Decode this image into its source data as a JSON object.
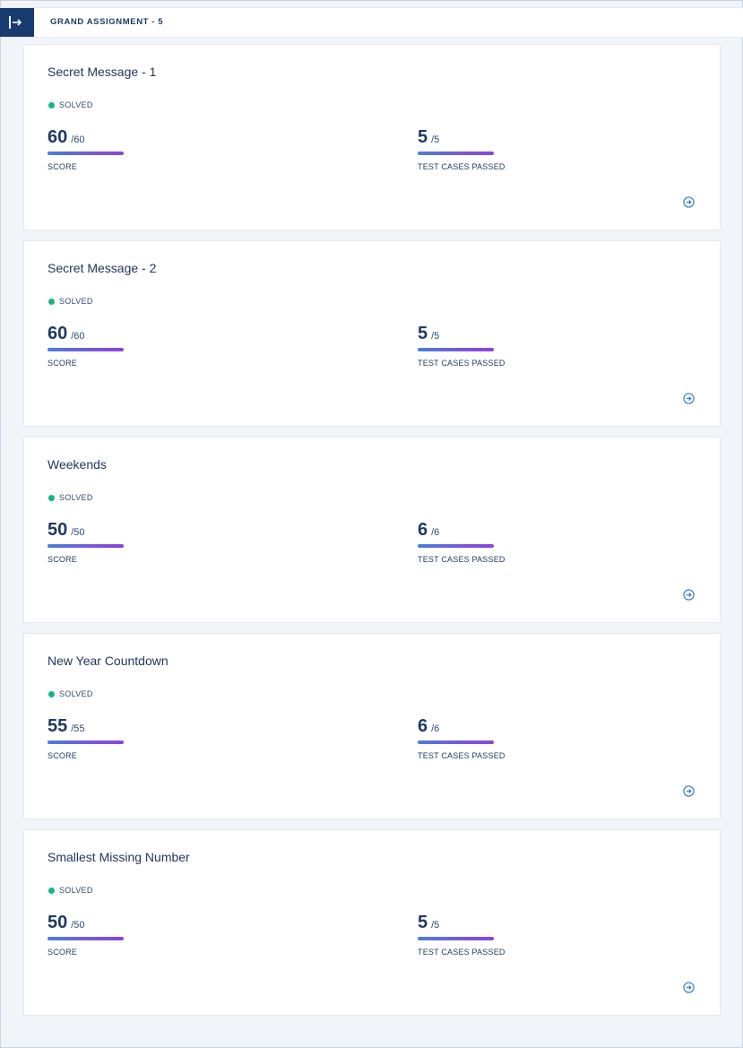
{
  "header": {
    "toggle_icon": "expand-sidebar-icon",
    "title": "GRAND ASSIGNMENT - 5"
  },
  "problems": [
    {
      "title": "Secret Message - 1",
      "status": "SOLVED",
      "score": "60",
      "score_max": "/60",
      "score_label": "SCORE",
      "score_fraction": 1.0,
      "tests": "5",
      "tests_max": "/5",
      "tests_label": "TEST CASES PASSED",
      "tests_fraction": 1.0
    },
    {
      "title": "Secret Message - 2",
      "status": "SOLVED",
      "score": "60",
      "score_max": "/60",
      "score_label": "SCORE",
      "score_fraction": 1.0,
      "tests": "5",
      "tests_max": "/5",
      "tests_label": "TEST CASES PASSED",
      "tests_fraction": 1.0
    },
    {
      "title": "Weekends",
      "status": "SOLVED",
      "score": "50",
      "score_max": "/50",
      "score_label": "SCORE",
      "score_fraction": 1.0,
      "tests": "6",
      "tests_max": "/6",
      "tests_label": "TEST CASES PASSED",
      "tests_fraction": 1.0
    },
    {
      "title": "New Year Countdown",
      "status": "SOLVED",
      "score": "55",
      "score_max": "/55",
      "score_label": "SCORE",
      "score_fraction": 1.0,
      "tests": "6",
      "tests_max": "/6",
      "tests_label": "TEST CASES PASSED",
      "tests_fraction": 1.0
    },
    {
      "title": "Smallest Missing Number",
      "status": "SOLVED",
      "score": "50",
      "score_max": "/50",
      "score_label": "SCORE",
      "score_fraction": 1.0,
      "tests": "5",
      "tests_max": "/5",
      "tests_label": "TEST CASES PASSED",
      "tests_fraction": 1.0
    }
  ],
  "colors": {
    "header_toggle": "#183b70",
    "solved": "#14b584",
    "progress_start": "#4a7fd6",
    "progress_end": "#8a45d8",
    "arrow": "#3a7bc8"
  }
}
